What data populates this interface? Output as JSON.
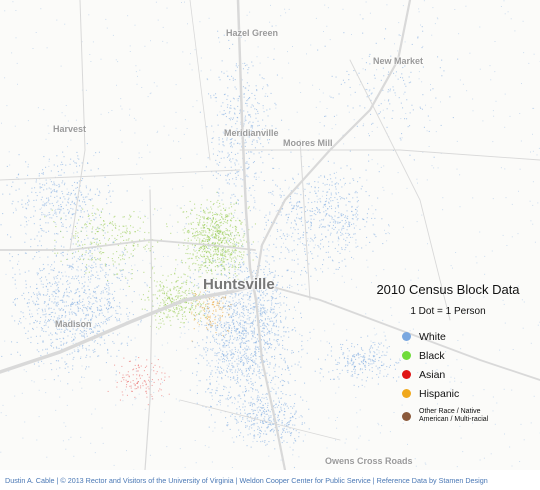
{
  "places": [
    {
      "id": "hazel-green",
      "label": "Hazel Green"
    },
    {
      "id": "new-market",
      "label": "New Market"
    },
    {
      "id": "harvest",
      "label": "Harvest"
    },
    {
      "id": "meridianville",
      "label": "Meridianville"
    },
    {
      "id": "moores-mill",
      "label": "Moores Mill"
    },
    {
      "id": "huntsville",
      "label": "Huntsville"
    },
    {
      "id": "madison",
      "label": "Madison"
    },
    {
      "id": "owens-cross-roads",
      "label": "Owens Cross Roads"
    }
  ],
  "legend": {
    "title": "2010 Census Block Data",
    "subtitle": "1 Dot = 1 Person",
    "items": [
      {
        "label": "White",
        "color": "#7aa8e0"
      },
      {
        "label": "Black",
        "color": "#6fdc3a"
      },
      {
        "label": "Asian",
        "color": "#e01515"
      },
      {
        "label": "Hispanic",
        "color": "#f0a81c"
      },
      {
        "label": "Other Race / Native American / Multi-racial",
        "color": "#8b5a3c"
      }
    ]
  },
  "credit": "Dustin A. Cable | © 2013 Rector and Visitors of the University of Virginia | Weldon Cooper Center for Public Service | Reference Data by Stamen Design",
  "colors": {
    "white": "#7aa8e0",
    "black": "#8cc63f",
    "asian": "#e01515",
    "hispanic": "#e8a030",
    "road": "#dcdcdc"
  }
}
